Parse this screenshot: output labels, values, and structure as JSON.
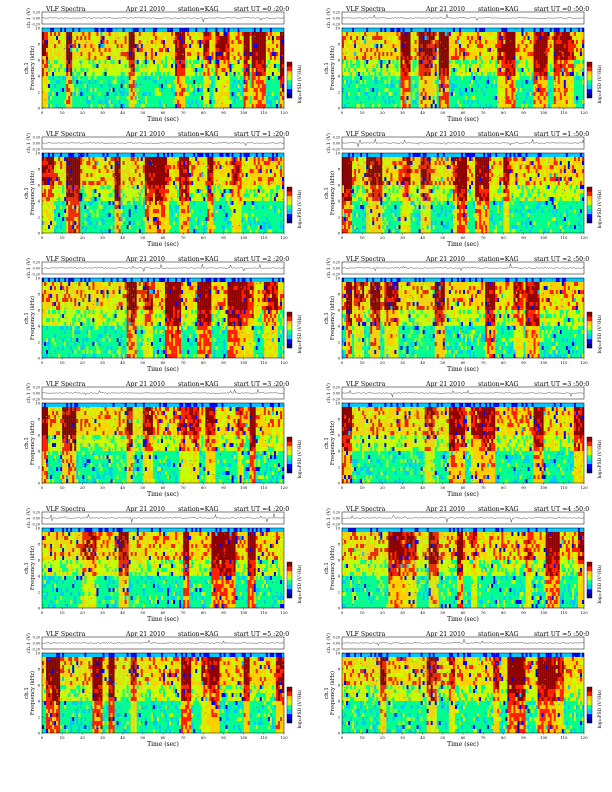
{
  "header": {
    "title": "VLF Spectra",
    "date": "Apr 21 2010",
    "station": "station=KAG",
    "start_prefix": "start  UT ="
  },
  "axes": {
    "voltage_ylabel": "ch.1 (V)",
    "voltage_ticks": [
      "0.20",
      "0.00",
      "-0.20"
    ],
    "freq_ylabel_line1": "ch.1",
    "freq_ylabel_line2": "Frequency  (kHz)",
    "freq_ticks": [
      "0",
      "2",
      "4",
      "6",
      "8",
      "10"
    ],
    "time_xlabel": "Time  (sec)",
    "time_ticks": [
      "0",
      "10",
      "20",
      "30",
      "40",
      "50",
      "60",
      "70",
      "80",
      "90",
      "100",
      "110",
      "120"
    ],
    "colorbar_label": "log₁₀PSD (V²/Hz)"
  },
  "colors": {
    "cmap": [
      "#000080",
      "#0000ff",
      "#00c8ff",
      "#00ff90",
      "#c8ff00",
      "#ffd000",
      "#ff2000",
      "#900000"
    ],
    "background_noise": "#44e0a0"
  },
  "chart_data": [
    {
      "type": "heatmap",
      "start_ut": "0 :20:0",
      "xlim": [
        0,
        120
      ],
      "ylim": [
        0,
        10
      ],
      "voltage_ylim": [
        -0.2,
        0.2
      ]
    },
    {
      "type": "heatmap",
      "start_ut": "0 :50:0",
      "xlim": [
        0,
        120
      ],
      "ylim": [
        0,
        10
      ],
      "voltage_ylim": [
        -0.2,
        0.2
      ]
    },
    {
      "type": "heatmap",
      "start_ut": "1 :20:0",
      "xlim": [
        0,
        120
      ],
      "ylim": [
        0,
        10
      ],
      "voltage_ylim": [
        -0.2,
        0.2
      ]
    },
    {
      "type": "heatmap",
      "start_ut": "1 :50:0",
      "xlim": [
        0,
        120
      ],
      "ylim": [
        0,
        10
      ],
      "voltage_ylim": [
        -0.2,
        0.2
      ]
    },
    {
      "type": "heatmap",
      "start_ut": "2 :20:0",
      "xlim": [
        0,
        120
      ],
      "ylim": [
        0,
        10
      ],
      "voltage_ylim": [
        -0.2,
        0.2
      ]
    },
    {
      "type": "heatmap",
      "start_ut": "2 :50:0",
      "xlim": [
        0,
        120
      ],
      "ylim": [
        0,
        10
      ],
      "voltage_ylim": [
        -0.2,
        0.2
      ]
    },
    {
      "type": "heatmap",
      "start_ut": "3 :20:0",
      "xlim": [
        0,
        120
      ],
      "ylim": [
        0,
        10
      ],
      "voltage_ylim": [
        -0.2,
        0.2
      ]
    },
    {
      "type": "heatmap",
      "start_ut": "3 :50:0",
      "xlim": [
        0,
        120
      ],
      "ylim": [
        0,
        10
      ],
      "voltage_ylim": [
        -0.2,
        0.2
      ]
    },
    {
      "type": "heatmap",
      "start_ut": "4 :20:0",
      "xlim": [
        0,
        120
      ],
      "ylim": [
        0,
        10
      ],
      "voltage_ylim": [
        -0.2,
        0.2
      ]
    },
    {
      "type": "heatmap",
      "start_ut": "4 :50:0",
      "xlim": [
        0,
        120
      ],
      "ylim": [
        0,
        10
      ],
      "voltage_ylim": [
        -0.2,
        0.2
      ]
    },
    {
      "type": "heatmap",
      "start_ut": "5 :20:0",
      "xlim": [
        0,
        120
      ],
      "ylim": [
        0,
        10
      ],
      "voltage_ylim": [
        -0.2,
        0.2
      ]
    },
    {
      "type": "heatmap",
      "start_ut": "5 :50:0",
      "xlim": [
        0,
        120
      ],
      "ylim": [
        0,
        10
      ],
      "voltage_ylim": [
        -0.2,
        0.2
      ]
    }
  ]
}
